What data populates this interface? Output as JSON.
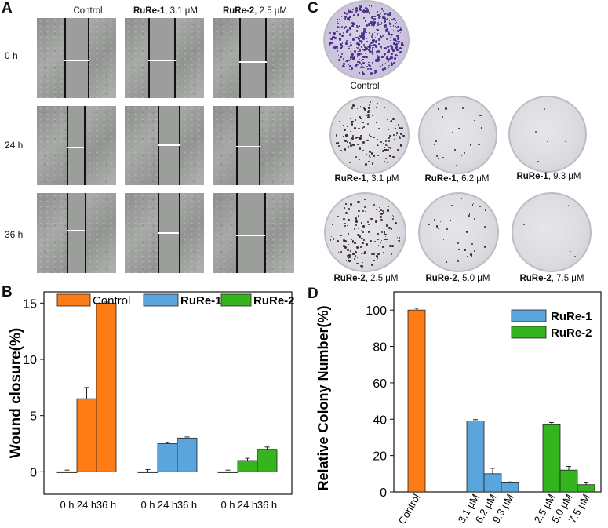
{
  "panels": {
    "A": "A",
    "B": "B",
    "C": "C",
    "D": "D"
  },
  "panelA": {
    "columns": [
      {
        "bold": "",
        "rest": "Control"
      },
      {
        "bold": "RuRe-1",
        "rest": ", 3.1 μM"
      },
      {
        "bold": "RuRe-2",
        "rest": ", 2.5 μM"
      }
    ],
    "rows": [
      "0 h",
      "24 h",
      "36 h"
    ]
  },
  "panelC": {
    "control_label": "Control",
    "dishes": [
      {
        "bold": "RuRe-1",
        "rest": ", 3.1 μM"
      },
      {
        "bold": "RuRe-1",
        "rest": ", 6.2 μM"
      },
      {
        "bold": "RuRe-1",
        "rest": ", 9.3 μM"
      },
      {
        "bold": "RuRe-2",
        "rest": ", 2.5 μM"
      },
      {
        "bold": "RuRe-2",
        "rest": ", 5.0 μM"
      },
      {
        "bold": "RuRe-2",
        "rest": ", 7.5 μM"
      }
    ]
  },
  "chart_data": [
    {
      "type": "bar",
      "panel": "B",
      "ylabel": "Wound closure(%)",
      "ylim": [
        -2,
        16
      ],
      "yticks": [
        0,
        5,
        10,
        15
      ],
      "x_tick_labels": [
        "0 h",
        "24 h",
        "36 h",
        "0 h",
        "24 h",
        "36 h",
        "0 h",
        "24 h",
        "36 h"
      ],
      "series": [
        {
          "name": "Control",
          "color": "#ff7b15",
          "values": [
            0,
            6.5,
            15
          ],
          "errors": [
            0.15,
            1.0,
            0.1
          ]
        },
        {
          "name": "RuRe-1",
          "color": "#5aa6dc",
          "values": [
            0,
            2.5,
            3.0
          ],
          "errors": [
            0.2,
            0.1,
            0.1
          ]
        },
        {
          "name": "RuRe-2",
          "color": "#35b51d",
          "values": [
            0,
            1.0,
            2.0
          ],
          "errors": [
            0.15,
            0.2,
            0.2
          ]
        }
      ],
      "legend": {
        "placement": "top",
        "entries": [
          "Control",
          "RuRe-1",
          "RuRe-2"
        ]
      }
    },
    {
      "type": "bar",
      "panel": "D",
      "ylabel": "Relative Colony Number(%)",
      "ylim": [
        0,
        110
      ],
      "yticks": [
        0,
        20,
        40,
        60,
        80,
        100
      ],
      "categories": [
        "Control",
        "3.1 μM",
        "6.2 μM",
        "9.3 μM",
        "2.5 μM",
        "5.0 μM",
        "7.5 μM"
      ],
      "values": [
        100,
        39,
        10,
        5,
        37,
        12,
        4
      ],
      "errors": [
        1.0,
        0.8,
        3.0,
        0.5,
        1.2,
        2.0,
        1.0
      ],
      "colors": [
        "#ff7b15",
        "#5aa6dc",
        "#5aa6dc",
        "#5aa6dc",
        "#35b51d",
        "#35b51d",
        "#35b51d"
      ],
      "legend": {
        "placement": "top-right",
        "entries": [
          {
            "name": "RuRe-1",
            "color": "#5aa6dc"
          },
          {
            "name": "RuRe-2",
            "color": "#35b51d"
          }
        ]
      }
    }
  ]
}
